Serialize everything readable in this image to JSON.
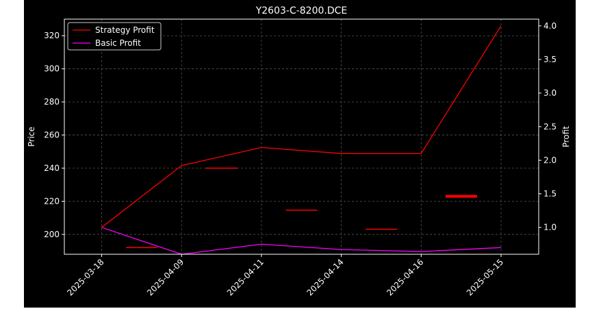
{
  "chart_data": {
    "type": "line",
    "title": "Y2603-C-8200.DCE",
    "xlabel": "",
    "ylabel": "Price",
    "y2label": "Profit",
    "categories": [
      "2025-03-18",
      "2025-04-09",
      "2025-04-11",
      "2025-04-14",
      "2025-04-16",
      "2025-05-15"
    ],
    "price_ylim": [
      188,
      330
    ],
    "price_yticks": [
      200,
      220,
      240,
      260,
      280,
      300,
      320
    ],
    "profit_ylim": [
      0.6,
      4.1
    ],
    "profit_yticks": [
      "1.0",
      "1.5",
      "2.0",
      "2.5",
      "3.0",
      "3.5",
      "4.0"
    ],
    "price_segments": [
      {
        "x": "2025-04-09",
        "value": 192.1
      },
      {
        "x": "2025-04-11",
        "value": 240.0
      },
      {
        "x": "2025-04-14",
        "value": 214.6
      },
      {
        "x": "2025-04-16",
        "value": 203.1
      },
      {
        "x": "2025-05-15",
        "value": 223.0
      }
    ],
    "series": [
      {
        "name": "Strategy Profit",
        "axis": "right",
        "color": "#ff0000",
        "values": [
          1.0,
          1.92,
          2.19,
          2.1,
          2.1,
          4.0
        ]
      },
      {
        "name": "Basic Profit",
        "axis": "right",
        "color": "#ff00ff",
        "values": [
          1.0,
          0.6,
          0.75,
          0.67,
          0.64,
          0.7
        ]
      }
    ],
    "price_color": "#ff0000",
    "grid": true,
    "legend_position": "top-left",
    "background": "#000000",
    "text_color": "#ffffff"
  }
}
